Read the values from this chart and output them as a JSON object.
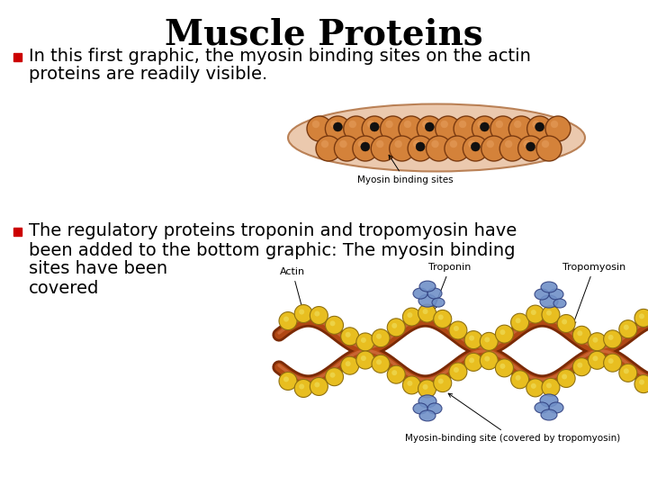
{
  "title": "Muscle Proteins",
  "title_fontsize": 28,
  "title_fontweight": "bold",
  "background_color": "#ffffff",
  "bullet_color": "#cc0000",
  "bullet1_line1": "In this first graphic, the myosin binding sites on the actin",
  "bullet1_line2": "proteins are readily visible.",
  "bullet2_line1": "The regulatory proteins troponin and tropomyosin have",
  "bullet2_line2": "been added to the bottom graphic: The myosin binding",
  "bullet2_line3": "sites have been",
  "bullet2_line4": "covered",
  "text_fontsize": 14,
  "text_color": "#000000",
  "label_fontsize": 8,
  "actin_color": "#d4823a",
  "actin_edge": "#7a3a10",
  "actin_highlight": "#e8a060",
  "actin_bg_face": "#e8c0a0",
  "actin_bg_edge": "#b07040",
  "dot_color": "#111111",
  "strand_dark": "#7a2a05",
  "strand_light": "#c05018",
  "sphere_color": "#e8be20",
  "sphere_edge": "#907010",
  "troponin_color": "#7090c8",
  "troponin_edge": "#304080"
}
